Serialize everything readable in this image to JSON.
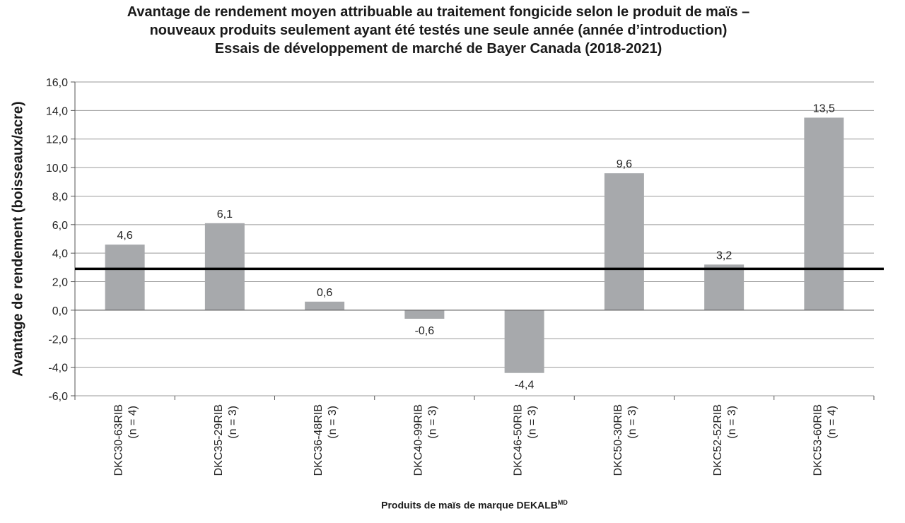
{
  "chart_data": {
    "type": "bar",
    "title": [
      "Avantage de rendement moyen attribuable au traitement fongicide selon le produit de maïs –",
      "nouveaux produits seulement ayant été testés une seule année (année d’introduction)",
      "Essais de développement de marché de Bayer Canada (2018-2021)"
    ],
    "ylabel": "Avantage de rendement (boisseaux/acre)",
    "xlabel": "Produits de maïs de marque DEKALB",
    "xlabel_sup": "MD",
    "categories": [
      [
        "DKC30-63RIB",
        "(n = 4)"
      ],
      [
        "DKC35-29RIB",
        "(n = 3)"
      ],
      [
        "DKC36-48RIB",
        "(n = 3)"
      ],
      [
        "DKC40-99RIB",
        "(n = 3)"
      ],
      [
        "DKC46-50RIB",
        "(n = 3)"
      ],
      [
        "DKC50-30RIB",
        "(n = 3)"
      ],
      [
        "DKC52-52RIB",
        "(n = 3)"
      ],
      [
        "DKC53-60RIB",
        "(n = 4)"
      ]
    ],
    "values": [
      4.6,
      6.1,
      0.6,
      -0.6,
      -4.4,
      9.6,
      3.2,
      13.5
    ],
    "value_labels": [
      "4,6",
      "6,1",
      "0,6",
      "-0,6",
      "-4,4",
      "9,6",
      "3,2",
      "13,5"
    ],
    "ylim": [
      -6,
      16
    ],
    "yticks": [
      16,
      14,
      12,
      10,
      8,
      6,
      4,
      2,
      0,
      -2,
      -4,
      -6
    ],
    "ytick_labels": [
      "16,0",
      "14,0",
      "12,0",
      "10,0",
      "8,0",
      "6,0",
      "4,0",
      "2,0",
      "0,0",
      "-2,0",
      "-4,0",
      "-6,0"
    ],
    "reference_line": 2.9,
    "grid": true,
    "bar_color": "#a7a9ac",
    "grid_color": "#9a9a9a",
    "reference_color": "#000000"
  }
}
